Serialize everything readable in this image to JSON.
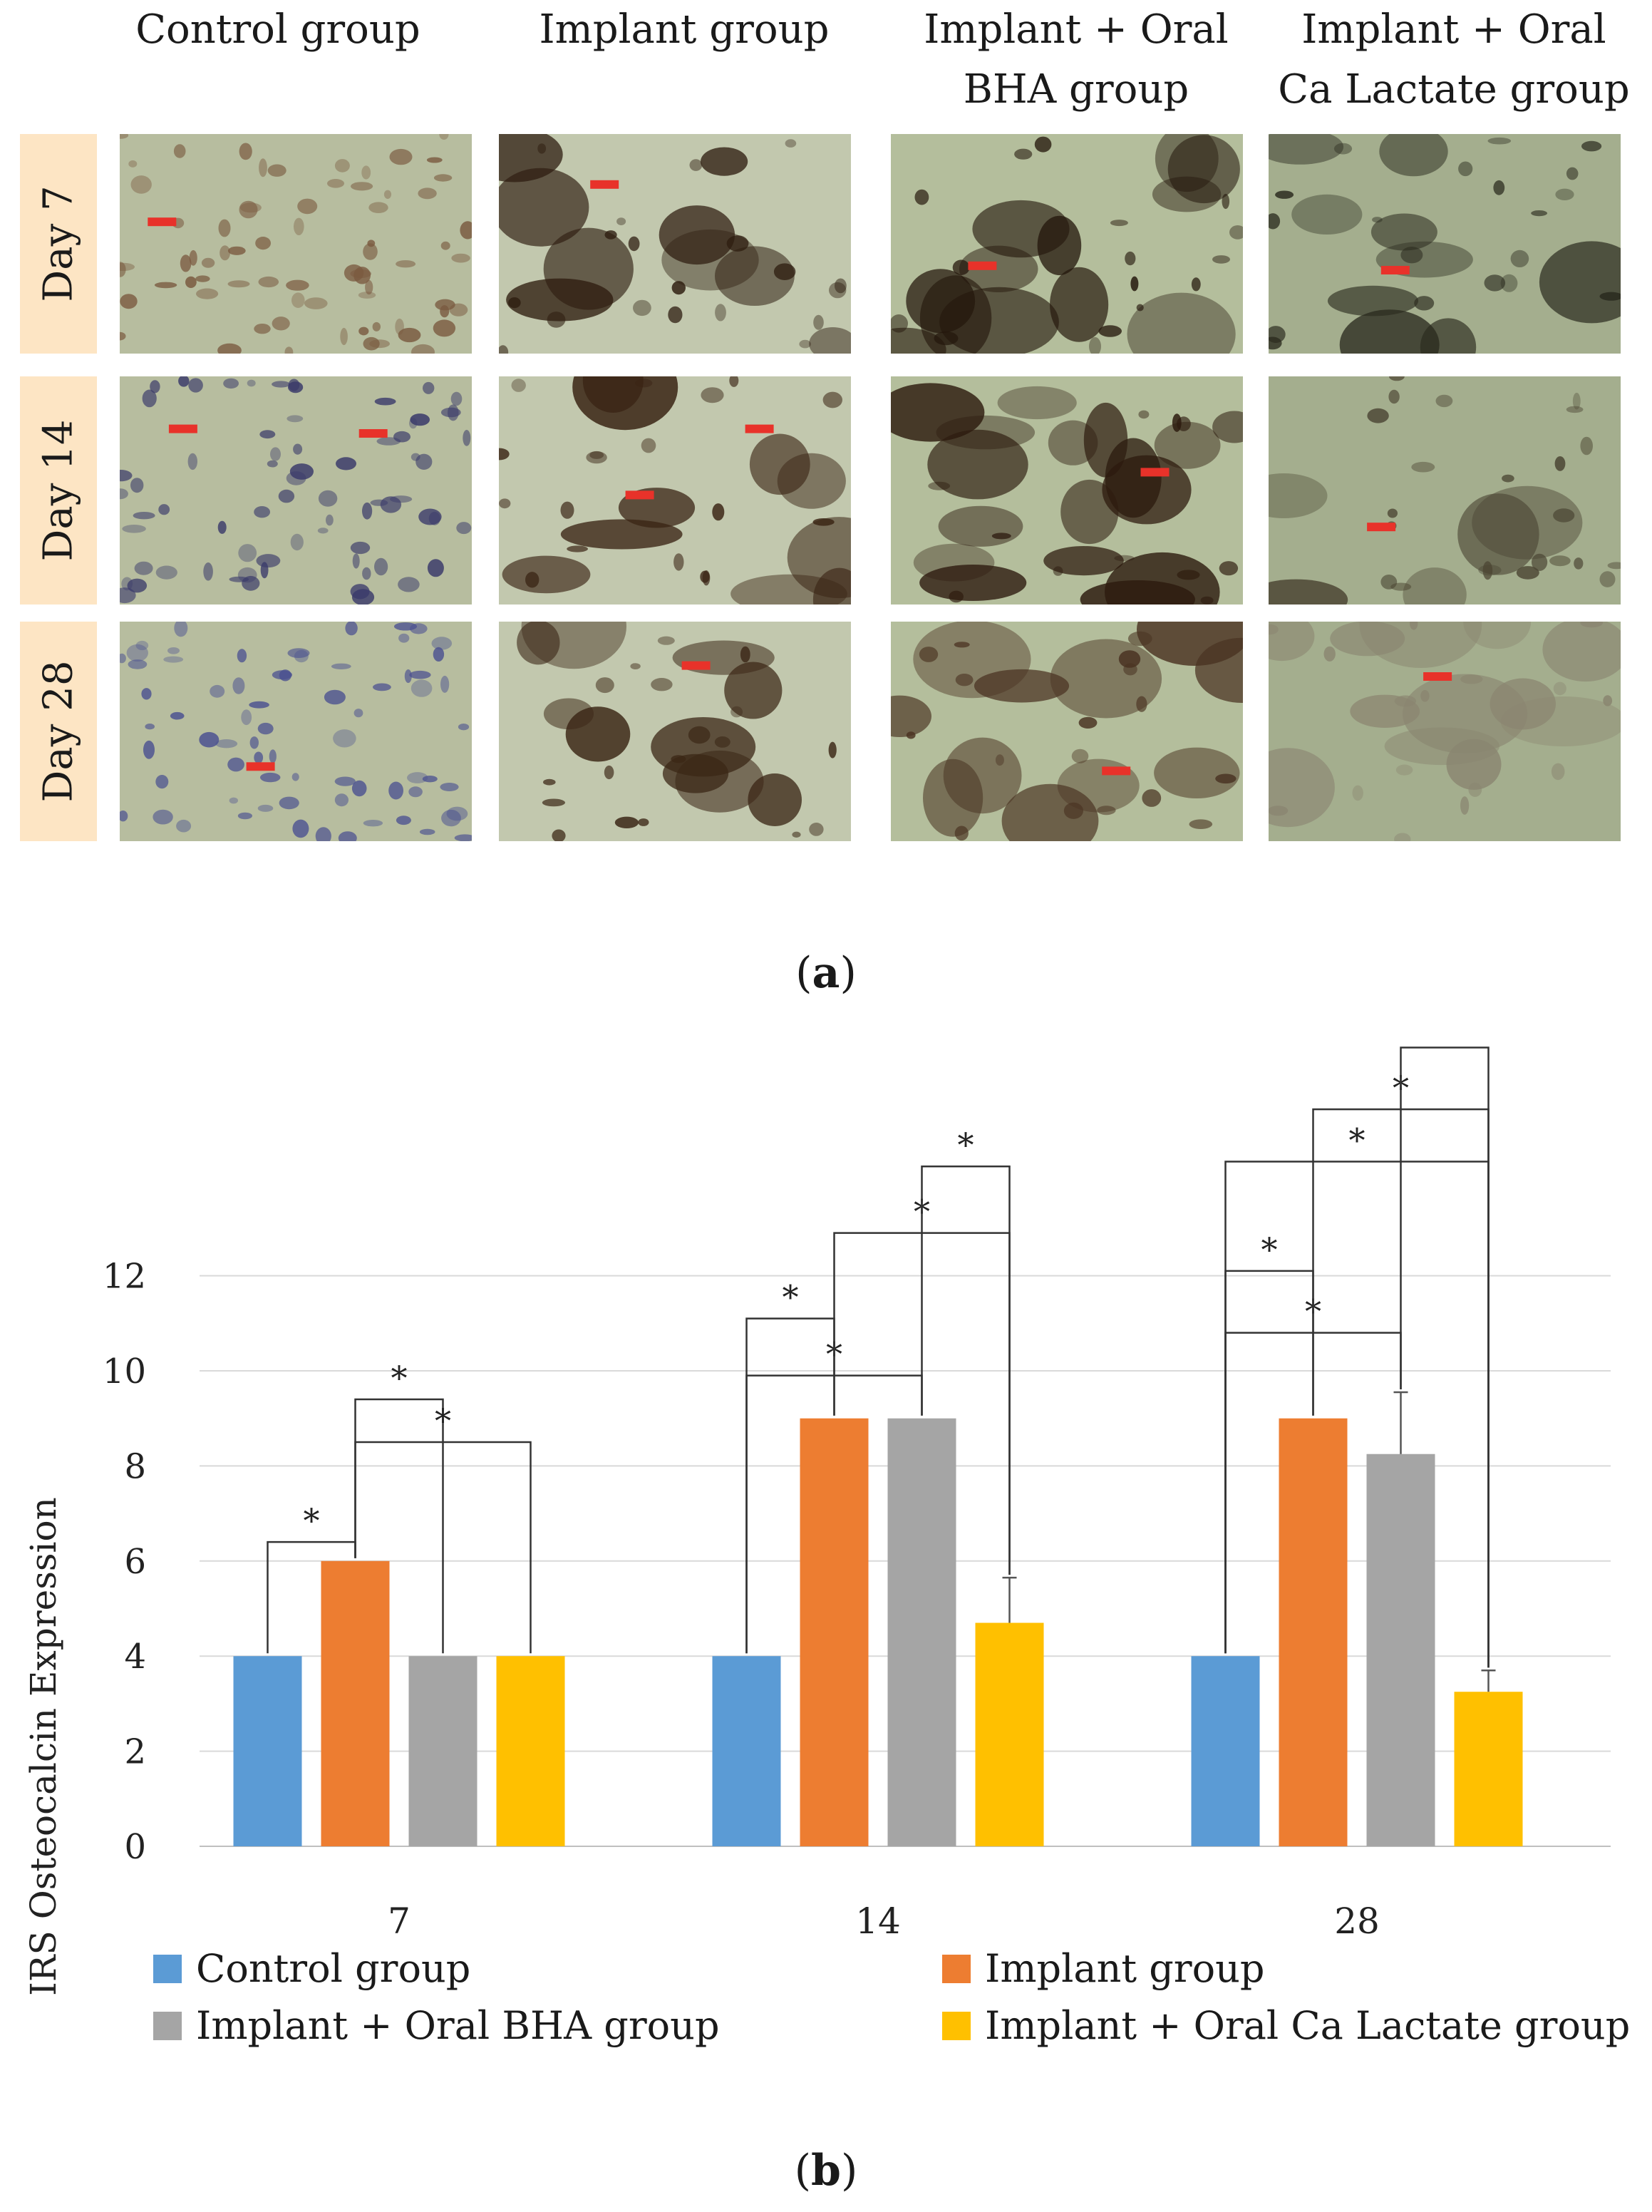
{
  "panel_a": {
    "column_headers": [
      "Control group",
      "Implant group",
      "Implant + Oral\nBHA group",
      "Implant + Oral\nCa Lactate group"
    ],
    "row_labels": [
      "Day 7",
      "Day 14",
      "Day 28"
    ],
    "label": "a"
  },
  "panel_b": {
    "label": "b"
  },
  "colors": {
    "control": "#5b9bd5",
    "implant": "#ed7d31",
    "bha": "#a5a5a5",
    "calactate": "#ffc000",
    "row_label_bg": "#fde5c4",
    "arrow": "#e8322a"
  },
  "chart_data": {
    "type": "bar",
    "title": "",
    "xlabel": "",
    "ylabel": "IRS Osteocalcin Expression",
    "ylim": [
      0,
      13
    ],
    "yticks": [
      0,
      2,
      4,
      6,
      8,
      10,
      12
    ],
    "grid": true,
    "legend_position": "bottom",
    "categories": [
      "7",
      "14",
      "28"
    ],
    "series": [
      {
        "name": "Control group",
        "values": [
          4,
          4,
          4
        ],
        "errors": [
          0,
          0,
          0
        ]
      },
      {
        "name": "Implant group",
        "values": [
          6,
          9,
          9
        ],
        "errors": [
          0,
          0,
          0
        ]
      },
      {
        "name": "Implant + Oral BHA group",
        "values": [
          4,
          9,
          8.25
        ],
        "errors": [
          0,
          0,
          1.3
        ]
      },
      {
        "name": "Implant + Oral Ca Lactate group",
        "values": [
          4,
          4.7,
          3.25
        ],
        "errors": [
          0,
          0.95,
          0.45
        ]
      }
    ],
    "significance_mark": "*",
    "significance": [
      {
        "category": "7",
        "from": 0,
        "to": 1,
        "level": 6.4
      },
      {
        "category": "7",
        "from": 1,
        "to": 2,
        "level": 9.4
      },
      {
        "category": "7",
        "from": 1,
        "to": 3,
        "level": 8.5
      },
      {
        "category": "14",
        "from": 0,
        "to": 1,
        "level": 11.1
      },
      {
        "category": "14",
        "from": 0,
        "to": 2,
        "level": 9.9
      },
      {
        "category": "14",
        "from": 1,
        "to": 3,
        "level": 12.9
      },
      {
        "category": "14",
        "from": 2,
        "to": 3,
        "level": 14.3
      },
      {
        "category": "28",
        "from": 0,
        "to": 1,
        "level": 12.1
      },
      {
        "category": "28",
        "from": 0,
        "to": 2,
        "level": 10.8
      },
      {
        "category": "28",
        "from": 0,
        "to": 3,
        "level": 14.4
      },
      {
        "category": "28",
        "from": 1,
        "to": 3,
        "level": 15.5
      },
      {
        "category": "28",
        "from": 2,
        "to": 3,
        "level": 16.8
      }
    ]
  }
}
